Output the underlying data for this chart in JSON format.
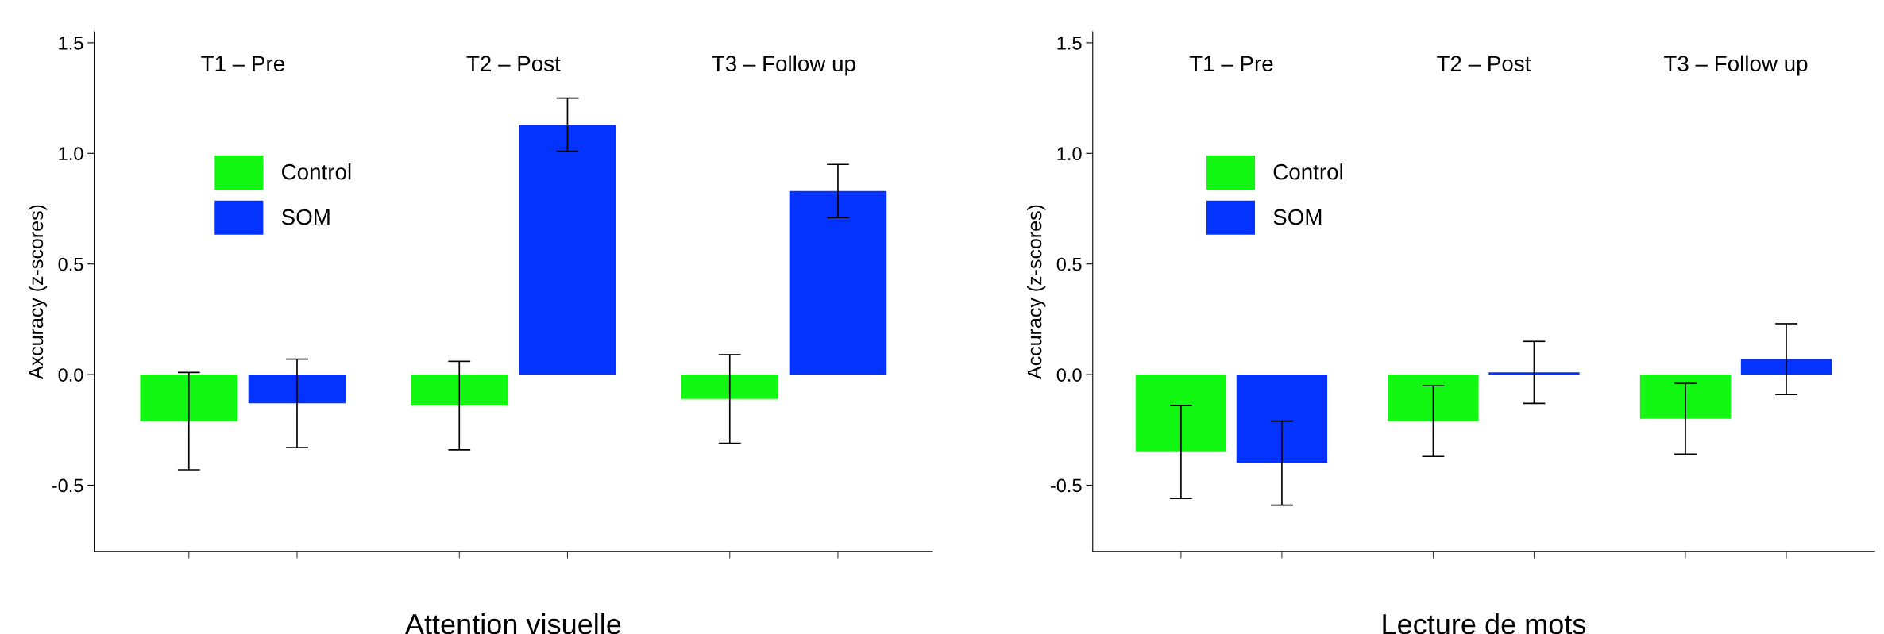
{
  "chart_data": [
    {
      "type": "bar",
      "xlabel": "Attention visuelle",
      "ylabel": "Axcuracy (z-scores)",
      "categories": [
        "T1 – Pre",
        "T2 – Post",
        "T3 – Follow up"
      ],
      "series": [
        {
          "name": "Control",
          "color": "#12f812",
          "values": [
            -0.21,
            -0.14,
            -0.11
          ],
          "errors": [
            0.22,
            0.2,
            0.2
          ]
        },
        {
          "name": "SOM",
          "color": "#0433ff",
          "values": [
            -0.13,
            1.13,
            0.83
          ],
          "errors": [
            0.2,
            0.12,
            0.12
          ]
        }
      ],
      "ylim": [
        -0.8,
        1.55
      ],
      "yticks": [
        {
          "value": -0.5,
          "label": "-0.5"
        },
        {
          "value": 0,
          "label": "0.0"
        },
        {
          "value": 0.5,
          "label": "0.5"
        },
        {
          "value": 1,
          "label": "1.0"
        },
        {
          "value": 1.5,
          "label": "1.5"
        }
      ],
      "legend": "top left",
      "grid": false
    },
    {
      "type": "bar",
      "xlabel": "Lecture de mots",
      "ylabel": "Accuracy (z-scores)",
      "categories": [
        "T1 – Pre",
        "T2 – Post",
        "T3 – Follow up"
      ],
      "series": [
        {
          "name": "Control",
          "color": "#12f812",
          "values": [
            -0.35,
            -0.21,
            -0.2
          ],
          "errors": [
            0.21,
            0.16,
            0.16
          ]
        },
        {
          "name": "SOM",
          "color": "#0433ff",
          "values": [
            -0.4,
            0.01,
            0.07
          ],
          "errors": [
            0.19,
            0.14,
            0.16
          ]
        }
      ],
      "ylim": [
        -0.8,
        1.55
      ],
      "yticks": [
        {
          "value": -0.5,
          "label": "-0.5"
        },
        {
          "value": 0,
          "label": "0.0"
        },
        {
          "value": 0.5,
          "label": "0.5"
        },
        {
          "value": 1,
          "label": "1.0"
        },
        {
          "value": 1.5,
          "label": "1.5"
        }
      ],
      "legend": "top left",
      "grid": false
    }
  ]
}
